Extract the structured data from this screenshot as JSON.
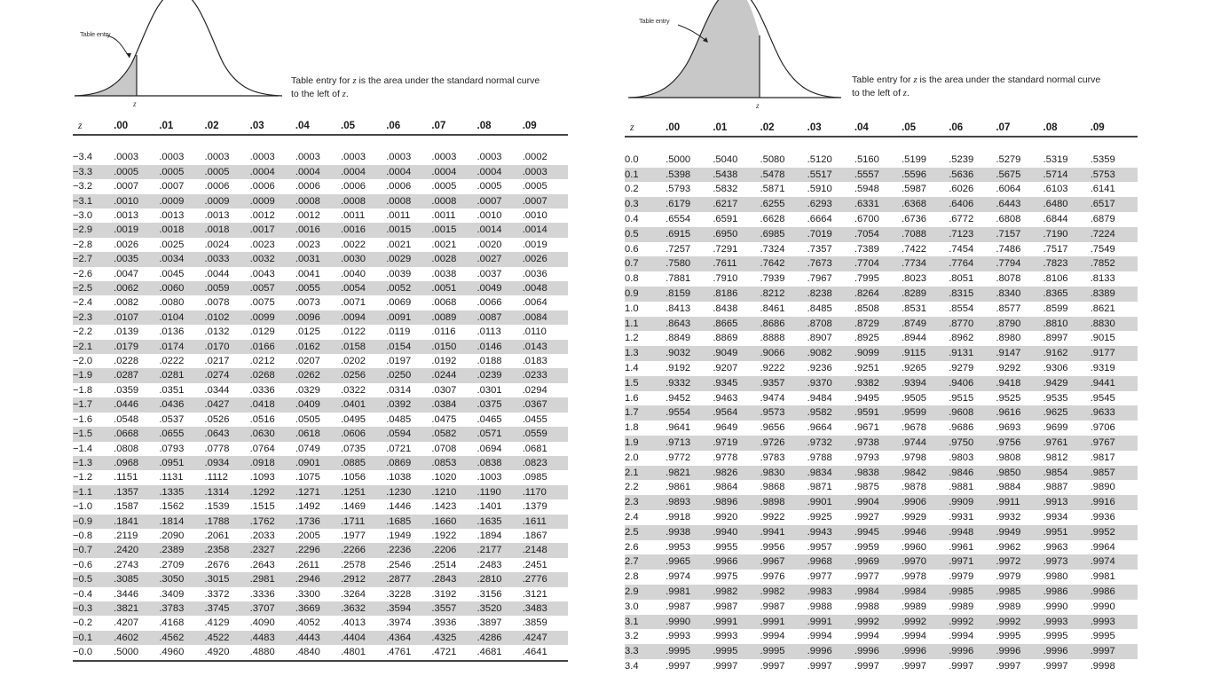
{
  "left": {
    "diagram": {
      "entry_label": "Table entry",
      "z_label": "z",
      "shaded_side": "left-tail"
    },
    "caption": {
      "line1_pre": "Table entry for ",
      "line1_z": "z",
      "line1_post": " is the area under the standard normal curve",
      "line2_pre": "to the left of ",
      "line2_z": "z",
      "line2_post": "."
    },
    "headers": [
      "z",
      ".00",
      ".01",
      ".02",
      ".03",
      ".04",
      ".05",
      ".06",
      ".07",
      ".08",
      ".09"
    ],
    "rows": [
      [
        "−3.4",
        ".0003",
        ".0003",
        ".0003",
        ".0003",
        ".0003",
        ".0003",
        ".0003",
        ".0003",
        ".0003",
        ".0002"
      ],
      [
        "−3.3",
        ".0005",
        ".0005",
        ".0005",
        ".0004",
        ".0004",
        ".0004",
        ".0004",
        ".0004",
        ".0004",
        ".0003"
      ],
      [
        "−3.2",
        ".0007",
        ".0007",
        ".0006",
        ".0006",
        ".0006",
        ".0006",
        ".0006",
        ".0005",
        ".0005",
        ".0005"
      ],
      [
        "−3.1",
        ".0010",
        ".0009",
        ".0009",
        ".0009",
        ".0008",
        ".0008",
        ".0008",
        ".0008",
        ".0007",
        ".0007"
      ],
      [
        "−3.0",
        ".0013",
        ".0013",
        ".0013",
        ".0012",
        ".0012",
        ".0011",
        ".0011",
        ".0011",
        ".0010",
        ".0010"
      ],
      [
        "−2.9",
        ".0019",
        ".0018",
        ".0018",
        ".0017",
        ".0016",
        ".0016",
        ".0015",
        ".0015",
        ".0014",
        ".0014"
      ],
      [
        "−2.8",
        ".0026",
        ".0025",
        ".0024",
        ".0023",
        ".0023",
        ".0022",
        ".0021",
        ".0021",
        ".0020",
        ".0019"
      ],
      [
        "−2.7",
        ".0035",
        ".0034",
        ".0033",
        ".0032",
        ".0031",
        ".0030",
        ".0029",
        ".0028",
        ".0027",
        ".0026"
      ],
      [
        "−2.6",
        ".0047",
        ".0045",
        ".0044",
        ".0043",
        ".0041",
        ".0040",
        ".0039",
        ".0038",
        ".0037",
        ".0036"
      ],
      [
        "−2.5",
        ".0062",
        ".0060",
        ".0059",
        ".0057",
        ".0055",
        ".0054",
        ".0052",
        ".0051",
        ".0049",
        ".0048"
      ],
      [
        "−2.4",
        ".0082",
        ".0080",
        ".0078",
        ".0075",
        ".0073",
        ".0071",
        ".0069",
        ".0068",
        ".0066",
        ".0064"
      ],
      [
        "−2.3",
        ".0107",
        ".0104",
        ".0102",
        ".0099",
        ".0096",
        ".0094",
        ".0091",
        ".0089",
        ".0087",
        ".0084"
      ],
      [
        "−2.2",
        ".0139",
        ".0136",
        ".0132",
        ".0129",
        ".0125",
        ".0122",
        ".0119",
        ".0116",
        ".0113",
        ".0110"
      ],
      [
        "−2.1",
        ".0179",
        ".0174",
        ".0170",
        ".0166",
        ".0162",
        ".0158",
        ".0154",
        ".0150",
        ".0146",
        ".0143"
      ],
      [
        "−2.0",
        ".0228",
        ".0222",
        ".0217",
        ".0212",
        ".0207",
        ".0202",
        ".0197",
        ".0192",
        ".0188",
        ".0183"
      ],
      [
        "−1.9",
        ".0287",
        ".0281",
        ".0274",
        ".0268",
        ".0262",
        ".0256",
        ".0250",
        ".0244",
        ".0239",
        ".0233"
      ],
      [
        "−1.8",
        ".0359",
        ".0351",
        ".0344",
        ".0336",
        ".0329",
        ".0322",
        ".0314",
        ".0307",
        ".0301",
        ".0294"
      ],
      [
        "−1.7",
        ".0446",
        ".0436",
        ".0427",
        ".0418",
        ".0409",
        ".0401",
        ".0392",
        ".0384",
        ".0375",
        ".0367"
      ],
      [
        "−1.6",
        ".0548",
        ".0537",
        ".0526",
        ".0516",
        ".0505",
        ".0495",
        ".0485",
        ".0475",
        ".0465",
        ".0455"
      ],
      [
        "−1.5",
        ".0668",
        ".0655",
        ".0643",
        ".0630",
        ".0618",
        ".0606",
        ".0594",
        ".0582",
        ".0571",
        ".0559"
      ],
      [
        "−1.4",
        ".0808",
        ".0793",
        ".0778",
        ".0764",
        ".0749",
        ".0735",
        ".0721",
        ".0708",
        ".0694",
        ".0681"
      ],
      [
        "−1.3",
        ".0968",
        ".0951",
        ".0934",
        ".0918",
        ".0901",
        ".0885",
        ".0869",
        ".0853",
        ".0838",
        ".0823"
      ],
      [
        "−1.2",
        ".1151",
        ".1131",
        ".1112",
        ".1093",
        ".1075",
        ".1056",
        ".1038",
        ".1020",
        ".1003",
        ".0985"
      ],
      [
        "−1.1",
        ".1357",
        ".1335",
        ".1314",
        ".1292",
        ".1271",
        ".1251",
        ".1230",
        ".1210",
        ".1190",
        ".1170"
      ],
      [
        "−1.0",
        ".1587",
        ".1562",
        ".1539",
        ".1515",
        ".1492",
        ".1469",
        ".1446",
        ".1423",
        ".1401",
        ".1379"
      ],
      [
        "−0.9",
        ".1841",
        ".1814",
        ".1788",
        ".1762",
        ".1736",
        ".1711",
        ".1685",
        ".1660",
        ".1635",
        ".1611"
      ],
      [
        "−0.8",
        ".2119",
        ".2090",
        ".2061",
        ".2033",
        ".2005",
        ".1977",
        ".1949",
        ".1922",
        ".1894",
        ".1867"
      ],
      [
        "−0.7",
        ".2420",
        ".2389",
        ".2358",
        ".2327",
        ".2296",
        ".2266",
        ".2236",
        ".2206",
        ".2177",
        ".2148"
      ],
      [
        "−0.6",
        ".2743",
        ".2709",
        ".2676",
        ".2643",
        ".2611",
        ".2578",
        ".2546",
        ".2514",
        ".2483",
        ".2451"
      ],
      [
        "−0.5",
        ".3085",
        ".3050",
        ".3015",
        ".2981",
        ".2946",
        ".2912",
        ".2877",
        ".2843",
        ".2810",
        ".2776"
      ],
      [
        "−0.4",
        ".3446",
        ".3409",
        ".3372",
        ".3336",
        ".3300",
        ".3264",
        ".3228",
        ".3192",
        ".3156",
        ".3121"
      ],
      [
        "−0.3",
        ".3821",
        ".3783",
        ".3745",
        ".3707",
        ".3669",
        ".3632",
        ".3594",
        ".3557",
        ".3520",
        ".3483"
      ],
      [
        "−0.2",
        ".4207",
        ".4168",
        ".4129",
        ".4090",
        ".4052",
        ".4013",
        ".3974",
        ".3936",
        ".3897",
        ".3859"
      ],
      [
        "−0.1",
        ".4602",
        ".4562",
        ".4522",
        ".4483",
        ".4443",
        ".4404",
        ".4364",
        ".4325",
        ".4286",
        ".4247"
      ],
      [
        "−0.0",
        ".5000",
        ".4960",
        ".4920",
        ".4880",
        ".4840",
        ".4801",
        ".4761",
        ".4721",
        ".4681",
        ".4641"
      ]
    ]
  },
  "right": {
    "diagram": {
      "entry_label": "Table entry",
      "z_label": "z",
      "shaded_side": "left-of-positive-z"
    },
    "caption": {
      "line1_pre": "Table entry for ",
      "line1_z": "z",
      "line1_post": " is the area under the standard normal curve",
      "line2_pre": "to the left of ",
      "line2_z": "z",
      "line2_post": "."
    },
    "headers": [
      "z",
      ".00",
      ".01",
      ".02",
      ".03",
      ".04",
      ".05",
      ".06",
      ".07",
      ".08",
      ".09"
    ],
    "rows": [
      [
        "0.0",
        ".5000",
        ".5040",
        ".5080",
        ".5120",
        ".5160",
        ".5199",
        ".5239",
        ".5279",
        ".5319",
        ".5359"
      ],
      [
        "0.1",
        ".5398",
        ".5438",
        ".5478",
        ".5517",
        ".5557",
        ".5596",
        ".5636",
        ".5675",
        ".5714",
        ".5753"
      ],
      [
        "0.2",
        ".5793",
        ".5832",
        ".5871",
        ".5910",
        ".5948",
        ".5987",
        ".6026",
        ".6064",
        ".6103",
        ".6141"
      ],
      [
        "0.3",
        ".6179",
        ".6217",
        ".6255",
        ".6293",
        ".6331",
        ".6368",
        ".6406",
        ".6443",
        ".6480",
        ".6517"
      ],
      [
        "0.4",
        ".6554",
        ".6591",
        ".6628",
        ".6664",
        ".6700",
        ".6736",
        ".6772",
        ".6808",
        ".6844",
        ".6879"
      ],
      [
        "0.5",
        ".6915",
        ".6950",
        ".6985",
        ".7019",
        ".7054",
        ".7088",
        ".7123",
        ".7157",
        ".7190",
        ".7224"
      ],
      [
        "0.6",
        ".7257",
        ".7291",
        ".7324",
        ".7357",
        ".7389",
        ".7422",
        ".7454",
        ".7486",
        ".7517",
        ".7549"
      ],
      [
        "0.7",
        ".7580",
        ".7611",
        ".7642",
        ".7673",
        ".7704",
        ".7734",
        ".7764",
        ".7794",
        ".7823",
        ".7852"
      ],
      [
        "0.8",
        ".7881",
        ".7910",
        ".7939",
        ".7967",
        ".7995",
        ".8023",
        ".8051",
        ".8078",
        ".8106",
        ".8133"
      ],
      [
        "0.9",
        ".8159",
        ".8186",
        ".8212",
        ".8238",
        ".8264",
        ".8289",
        ".8315",
        ".8340",
        ".8365",
        ".8389"
      ],
      [
        "1.0",
        ".8413",
        ".8438",
        ".8461",
        ".8485",
        ".8508",
        ".8531",
        ".8554",
        ".8577",
        ".8599",
        ".8621"
      ],
      [
        "1.1",
        ".8643",
        ".8665",
        ".8686",
        ".8708",
        ".8729",
        ".8749",
        ".8770",
        ".8790",
        ".8810",
        ".8830"
      ],
      [
        "1.2",
        ".8849",
        ".8869",
        ".8888",
        ".8907",
        ".8925",
        ".8944",
        ".8962",
        ".8980",
        ".8997",
        ".9015"
      ],
      [
        "1.3",
        ".9032",
        ".9049",
        ".9066",
        ".9082",
        ".9099",
        ".9115",
        ".9131",
        ".9147",
        ".9162",
        ".9177"
      ],
      [
        "1.4",
        ".9192",
        ".9207",
        ".9222",
        ".9236",
        ".9251",
        ".9265",
        ".9279",
        ".9292",
        ".9306",
        ".9319"
      ],
      [
        "1.5",
        ".9332",
        ".9345",
        ".9357",
        ".9370",
        ".9382",
        ".9394",
        ".9406",
        ".9418",
        ".9429",
        ".9441"
      ],
      [
        "1.6",
        ".9452",
        ".9463",
        ".9474",
        ".9484",
        ".9495",
        ".9505",
        ".9515",
        ".9525",
        ".9535",
        ".9545"
      ],
      [
        "1.7",
        ".9554",
        ".9564",
        ".9573",
        ".9582",
        ".9591",
        ".9599",
        ".9608",
        ".9616",
        ".9625",
        ".9633"
      ],
      [
        "1.8",
        ".9641",
        ".9649",
        ".9656",
        ".9664",
        ".9671",
        ".9678",
        ".9686",
        ".9693",
        ".9699",
        ".9706"
      ],
      [
        "1.9",
        ".9713",
        ".9719",
        ".9726",
        ".9732",
        ".9738",
        ".9744",
        ".9750",
        ".9756",
        ".9761",
        ".9767"
      ],
      [
        "2.0",
        ".9772",
        ".9778",
        ".9783",
        ".9788",
        ".9793",
        ".9798",
        ".9803",
        ".9808",
        ".9812",
        ".9817"
      ],
      [
        "2.1",
        ".9821",
        ".9826",
        ".9830",
        ".9834",
        ".9838",
        ".9842",
        ".9846",
        ".9850",
        ".9854",
        ".9857"
      ],
      [
        "2.2",
        ".9861",
        ".9864",
        ".9868",
        ".9871",
        ".9875",
        ".9878",
        ".9881",
        ".9884",
        ".9887",
        ".9890"
      ],
      [
        "2.3",
        ".9893",
        ".9896",
        ".9898",
        ".9901",
        ".9904",
        ".9906",
        ".9909",
        ".9911",
        ".9913",
        ".9916"
      ],
      [
        "2.4",
        ".9918",
        ".9920",
        ".9922",
        ".9925",
        ".9927",
        ".9929",
        ".9931",
        ".9932",
        ".9934",
        ".9936"
      ],
      [
        "2.5",
        ".9938",
        ".9940",
        ".9941",
        ".9943",
        ".9945",
        ".9946",
        ".9948",
        ".9949",
        ".9951",
        ".9952"
      ],
      [
        "2.6",
        ".9953",
        ".9955",
        ".9956",
        ".9957",
        ".9959",
        ".9960",
        ".9961",
        ".9962",
        ".9963",
        ".9964"
      ],
      [
        "2.7",
        ".9965",
        ".9966",
        ".9967",
        ".9968",
        ".9969",
        ".9970",
        ".9971",
        ".9972",
        ".9973",
        ".9974"
      ],
      [
        "2.8",
        ".9974",
        ".9975",
        ".9976",
        ".9977",
        ".9977",
        ".9978",
        ".9979",
        ".9979",
        ".9980",
        ".9981"
      ],
      [
        "2.9",
        ".9981",
        ".9982",
        ".9982",
        ".9983",
        ".9984",
        ".9984",
        ".9985",
        ".9985",
        ".9986",
        ".9986"
      ],
      [
        "3.0",
        ".9987",
        ".9987",
        ".9987",
        ".9988",
        ".9988",
        ".9989",
        ".9989",
        ".9989",
        ".9990",
        ".9990"
      ],
      [
        "3.1",
        ".9990",
        ".9991",
        ".9991",
        ".9991",
        ".9992",
        ".9992",
        ".9992",
        ".9992",
        ".9993",
        ".9993"
      ],
      [
        "3.2",
        ".9993",
        ".9993",
        ".9994",
        ".9994",
        ".9994",
        ".9994",
        ".9994",
        ".9995",
        ".9995",
        ".9995"
      ],
      [
        "3.3",
        ".9995",
        ".9995",
        ".9995",
        ".9996",
        ".9996",
        ".9996",
        ".9996",
        ".9996",
        ".9996",
        ".9997"
      ],
      [
        "3.4",
        ".9997",
        ".9997",
        ".9997",
        ".9997",
        ".9997",
        ".9997",
        ".9997",
        ".9997",
        ".9997",
        ".9998"
      ]
    ]
  },
  "colors": {
    "row_shade": "#d4d4d4",
    "curve_fill": "#c8c8c8",
    "rule": "#444444"
  }
}
